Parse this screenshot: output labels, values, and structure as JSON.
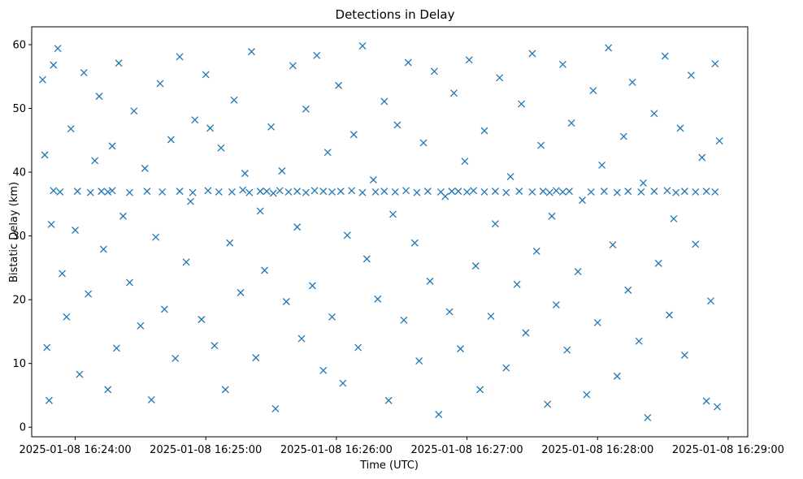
{
  "chart_data": {
    "type": "scatter",
    "title": "Detections in Delay",
    "xlabel": "Time (UTC)",
    "ylabel": "Bistatic Delay (km)",
    "x_tick_labels": [
      "2025-01-08 16:24:00",
      "2025-01-08 16:25:00",
      "2025-01-08 16:26:00",
      "2025-01-08 16:27:00",
      "2025-01-08 16:28:00",
      "2025-01-08 16:29:00"
    ],
    "y_ticks": [
      0,
      10,
      20,
      30,
      40,
      50,
      60
    ],
    "xlim": [
      "2025-01-08 16:23:40",
      "2025-01-08 16:29:09"
    ],
    "ylim": [
      -1.5,
      62.8
    ],
    "grid": false,
    "marker": "x",
    "color": "#1f77b4",
    "series": [
      {
        "x_start": "2025-01-08 16:23:44",
        "x_end": "2025-01-08 16:28:56",
        "constant_y": 36.9,
        "points": [
          [
            "16:23:50",
            37.1
          ],
          [
            "16:23:53",
            36.9
          ],
          [
            "16:24:01",
            37.0
          ],
          [
            "16:24:07",
            36.8
          ],
          [
            "16:24:12",
            37.0
          ],
          [
            "16:24:15",
            36.9
          ],
          [
            "16:24:17",
            37.1
          ],
          [
            "16:24:25",
            36.8
          ],
          [
            "16:24:33",
            37.0
          ],
          [
            "16:24:40",
            36.9
          ],
          [
            "16:24:48",
            37.0
          ],
          [
            "16:24:54",
            36.8
          ],
          [
            "16:25:01",
            37.1
          ],
          [
            "16:25:06",
            36.9
          ],
          [
            "16:25:12",
            36.9
          ],
          [
            "16:25:17",
            37.2
          ],
          [
            "16:25:20",
            36.8
          ],
          [
            "16:25:25",
            37.0
          ],
          [
            "16:25:28",
            37.0
          ],
          [
            "16:25:31",
            36.7
          ],
          [
            "16:25:34",
            37.1
          ],
          [
            "16:25:38",
            36.9
          ],
          [
            "16:25:42",
            37.0
          ],
          [
            "16:25:46",
            36.8
          ],
          [
            "16:25:50",
            37.1
          ],
          [
            "16:25:54",
            37.0
          ],
          [
            "16:25:58",
            36.9
          ],
          [
            "16:26:02",
            37.0
          ],
          [
            "16:26:07",
            37.1
          ],
          [
            "16:26:12",
            36.8
          ],
          [
            "16:26:18",
            36.9
          ],
          [
            "16:26:22",
            37.0
          ],
          [
            "16:26:27",
            36.9
          ],
          [
            "16:26:32",
            37.1
          ],
          [
            "16:26:37",
            36.8
          ],
          [
            "16:26:42",
            37.0
          ],
          [
            "16:26:48",
            36.9
          ],
          [
            "16:26:53",
            37.0
          ],
          [
            "16:26:56",
            37.0
          ],
          [
            "16:27:00",
            36.9
          ],
          [
            "16:27:03",
            37.1
          ],
          [
            "16:27:08",
            36.9
          ],
          [
            "16:27:13",
            37.0
          ],
          [
            "16:27:18",
            36.8
          ],
          [
            "16:27:24",
            37.0
          ],
          [
            "16:27:30",
            36.9
          ],
          [
            "16:27:35",
            37.0
          ],
          [
            "16:27:38",
            36.8
          ],
          [
            "16:27:41",
            37.1
          ],
          [
            "16:27:44",
            36.9
          ],
          [
            "16:27:47",
            37.0
          ],
          [
            "16:27:57",
            36.9
          ],
          [
            "16:28:03",
            37.0
          ],
          [
            "16:28:09",
            36.8
          ],
          [
            "16:28:14",
            37.0
          ],
          [
            "16:28:20",
            36.9
          ],
          [
            "16:28:26",
            37.0
          ],
          [
            "16:28:32",
            37.1
          ],
          [
            "16:28:36",
            36.8
          ],
          [
            "16:28:40",
            37.0
          ],
          [
            "16:28:45",
            36.9
          ],
          [
            "16:28:50",
            37.0
          ],
          [
            "16:28:54",
            36.9
          ],
          [
            "16:23:45",
            54.5
          ],
          [
            "16:23:46",
            42.7
          ],
          [
            "16:23:47",
            12.5
          ],
          [
            "16:23:48",
            4.2
          ],
          [
            "16:23:49",
            31.8
          ],
          [
            "16:23:50",
            56.8
          ],
          [
            "16:23:52",
            59.4
          ],
          [
            "16:23:54",
            24.1
          ],
          [
            "16:23:56",
            17.3
          ],
          [
            "16:23:58",
            46.8
          ],
          [
            "16:24:00",
            30.9
          ],
          [
            "16:24:02",
            8.3
          ],
          [
            "16:24:04",
            55.6
          ],
          [
            "16:24:06",
            20.9
          ],
          [
            "16:24:09",
            41.8
          ],
          [
            "16:24:11",
            51.9
          ],
          [
            "16:24:13",
            27.9
          ],
          [
            "16:24:15",
            5.9
          ],
          [
            "16:24:17",
            44.1
          ],
          [
            "16:24:19",
            12.4
          ],
          [
            "16:24:20",
            57.1
          ],
          [
            "16:24:22",
            33.1
          ],
          [
            "16:24:25",
            22.7
          ],
          [
            "16:24:27",
            49.6
          ],
          [
            "16:24:30",
            15.9
          ],
          [
            "16:24:32",
            40.6
          ],
          [
            "16:24:35",
            4.3
          ],
          [
            "16:24:37",
            29.8
          ],
          [
            "16:24:39",
            53.9
          ],
          [
            "16:24:41",
            18.5
          ],
          [
            "16:24:44",
            45.1
          ],
          [
            "16:24:46",
            10.8
          ],
          [
            "16:24:48",
            58.1
          ],
          [
            "16:24:51",
            25.9
          ],
          [
            "16:24:53",
            35.4
          ],
          [
            "16:24:55",
            48.2
          ],
          [
            "16:24:58",
            16.9
          ],
          [
            "16:25:00",
            55.3
          ],
          [
            "16:25:02",
            46.9
          ],
          [
            "16:25:04",
            12.8
          ],
          [
            "16:25:07",
            43.8
          ],
          [
            "16:25:09",
            5.9
          ],
          [
            "16:25:11",
            28.9
          ],
          [
            "16:25:13",
            51.3
          ],
          [
            "16:25:16",
            21.1
          ],
          [
            "16:25:18",
            39.8
          ],
          [
            "16:25:21",
            58.9
          ],
          [
            "16:25:23",
            10.9
          ],
          [
            "16:25:25",
            33.9
          ],
          [
            "16:25:27",
            24.6
          ],
          [
            "16:25:30",
            47.1
          ],
          [
            "16:25:32",
            2.9
          ],
          [
            "16:25:35",
            40.2
          ],
          [
            "16:25:37",
            19.7
          ],
          [
            "16:25:40",
            56.7
          ],
          [
            "16:25:42",
            31.4
          ],
          [
            "16:25:44",
            13.9
          ],
          [
            "16:25:46",
            49.9
          ],
          [
            "16:25:49",
            22.2
          ],
          [
            "16:25:51",
            58.3
          ],
          [
            "16:25:54",
            8.9
          ],
          [
            "16:25:56",
            43.1
          ],
          [
            "16:25:58",
            17.3
          ],
          [
            "16:26:01",
            53.6
          ],
          [
            "16:26:03",
            6.9
          ],
          [
            "16:26:05",
            30.1
          ],
          [
            "16:26:08",
            45.9
          ],
          [
            "16:26:10",
            12.5
          ],
          [
            "16:26:12",
            59.8
          ],
          [
            "16:26:14",
            26.4
          ],
          [
            "16:26:17",
            38.8
          ],
          [
            "16:26:19",
            20.1
          ],
          [
            "16:26:22",
            51.1
          ],
          [
            "16:26:24",
            4.2
          ],
          [
            "16:26:26",
            33.4
          ],
          [
            "16:26:28",
            47.4
          ],
          [
            "16:26:31",
            16.8
          ],
          [
            "16:26:33",
            57.2
          ],
          [
            "16:26:36",
            28.9
          ],
          [
            "16:26:38",
            10.4
          ],
          [
            "16:26:40",
            44.6
          ],
          [
            "16:26:43",
            22.9
          ],
          [
            "16:26:45",
            55.8
          ],
          [
            "16:26:47",
            2.0
          ],
          [
            "16:26:50",
            36.2
          ],
          [
            "16:26:52",
            18.1
          ],
          [
            "16:26:54",
            52.4
          ],
          [
            "16:26:57",
            12.3
          ],
          [
            "16:26:59",
            41.7
          ],
          [
            "16:27:01",
            57.6
          ],
          [
            "16:27:04",
            25.3
          ],
          [
            "16:27:06",
            5.9
          ],
          [
            "16:27:08",
            46.5
          ],
          [
            "16:27:11",
            17.4
          ],
          [
            "16:27:13",
            31.9
          ],
          [
            "16:27:15",
            54.8
          ],
          [
            "16:27:18",
            9.3
          ],
          [
            "16:27:20",
            39.3
          ],
          [
            "16:27:23",
            22.4
          ],
          [
            "16:27:25",
            50.7
          ],
          [
            "16:27:27",
            14.8
          ],
          [
            "16:27:30",
            58.6
          ],
          [
            "16:27:32",
            27.6
          ],
          [
            "16:27:34",
            44.2
          ],
          [
            "16:27:37",
            3.6
          ],
          [
            "16:27:39",
            33.1
          ],
          [
            "16:27:41",
            19.2
          ],
          [
            "16:27:44",
            56.9
          ],
          [
            "16:27:46",
            12.1
          ],
          [
            "16:27:48",
            47.7
          ],
          [
            "16:27:51",
            24.4
          ],
          [
            "16:27:53",
            35.6
          ],
          [
            "16:27:55",
            5.1
          ],
          [
            "16:27:58",
            52.8
          ],
          [
            "16:28:00",
            16.4
          ],
          [
            "16:28:02",
            41.1
          ],
          [
            "16:28:05",
            59.5
          ],
          [
            "16:28:07",
            28.6
          ],
          [
            "16:28:09",
            8.0
          ],
          [
            "16:28:12",
            45.6
          ],
          [
            "16:28:14",
            21.5
          ],
          [
            "16:28:16",
            54.1
          ],
          [
            "16:28:19",
            13.5
          ],
          [
            "16:28:21",
            38.3
          ],
          [
            "16:28:23",
            1.5
          ],
          [
            "16:28:26",
            49.2
          ],
          [
            "16:28:28",
            25.7
          ],
          [
            "16:28:31",
            58.2
          ],
          [
            "16:28:33",
            17.6
          ],
          [
            "16:28:35",
            32.7
          ],
          [
            "16:28:38",
            46.9
          ],
          [
            "16:28:40",
            11.3
          ],
          [
            "16:28:43",
            55.2
          ],
          [
            "16:28:45",
            28.7
          ],
          [
            "16:28:48",
            42.3
          ],
          [
            "16:28:50",
            4.1
          ],
          [
            "16:28:52",
            19.8
          ],
          [
            "16:28:54",
            57.0
          ],
          [
            "16:28:55",
            3.2
          ],
          [
            "16:28:56",
            44.9
          ]
        ]
      }
    ]
  }
}
